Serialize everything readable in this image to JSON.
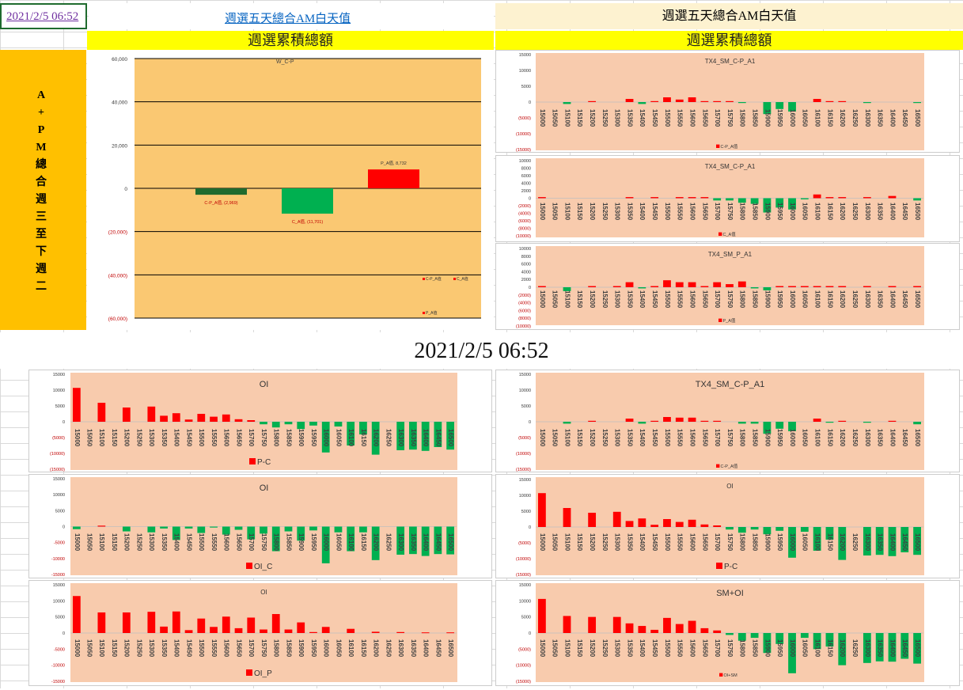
{
  "header": {
    "date_cell": "2021/2/5 06:52",
    "link_title": "週選五天總合AM白天值",
    "right_title": "週選五天總合AM白天值",
    "left_band": "週選累積總額",
    "right_band": "週選累積總額",
    "side_label": "A+PM總合週三至下週二",
    "center_time": "2021/2/5 06:52"
  },
  "colors": {
    "red": "#ff0000",
    "green": "#00b050",
    "dark_green": "#1f6b2e",
    "salmon_plot": "#f8cbad",
    "orange_plot": "#fac872",
    "yellow": "#ffff00",
    "gold": "#ffc000",
    "axis_red": "#c00000"
  },
  "chart_data": [
    {
      "id": "main",
      "type": "bar",
      "title": "W_C-P",
      "categories": [
        "C-P_A值",
        "C_A值",
        "P_A值"
      ],
      "values": [
        -2969,
        -11701,
        8732
      ],
      "data_labels": [
        "C-P_A值, (2,969)",
        "C_A值, (11,701)",
        "P_A值, 8,732"
      ],
      "legend": [
        "C-P_A值",
        "C_A值",
        "P_A值"
      ],
      "ylim": [
        -60000,
        60000
      ],
      "y_ticks": [
        "60,000",
        "40,000",
        "20,000",
        "0",
        "(20,000)",
        "(40,000)",
        "(60,000)"
      ]
    },
    {
      "id": "r1",
      "type": "bar",
      "title": "TX4_SM_C-P_A1",
      "categories": [
        "15000",
        "15050",
        "15100",
        "15150",
        "15200",
        "15250",
        "15300",
        "15350",
        "15400",
        "15450",
        "15500",
        "15550",
        "15600",
        "15650",
        "15700",
        "15750",
        "15800",
        "15850",
        "15900",
        "15950",
        "16000",
        "16050",
        "16100",
        "16150",
        "16200",
        "16250",
        "16300",
        "16350",
        "16400",
        "16450",
        "16500"
      ],
      "values": [
        0,
        0,
        -600,
        0,
        300,
        0,
        0,
        1000,
        -600,
        300,
        1500,
        800,
        1500,
        300,
        300,
        300,
        -300,
        0,
        -3800,
        -2200,
        -3000,
        0,
        1000,
        300,
        300,
        0,
        -300,
        0,
        0,
        0,
        -300
      ],
      "ylim": [
        -15000,
        15000
      ],
      "y_ticks": [
        "15000",
        "10000",
        "5000",
        "0",
        "(5000)",
        "(10000)",
        "(15000)"
      ],
      "legend": [
        "C-P_A值"
      ]
    },
    {
      "id": "r2",
      "type": "bar",
      "title": "TX4_SM_C-P_A1",
      "categories": [
        "15000",
        "15050",
        "15100",
        "15150",
        "15200",
        "15250",
        "15300",
        "15350",
        "15400",
        "15450",
        "15500",
        "15550",
        "15600",
        "15650",
        "15700",
        "15750",
        "15800",
        "15850",
        "15900",
        "15950",
        "16000",
        "16050",
        "16100",
        "16150",
        "16200",
        "16250",
        "16300",
        "16350",
        "16400",
        "16450",
        "16500"
      ],
      "values": [
        300,
        0,
        0,
        0,
        0,
        0,
        0,
        300,
        0,
        300,
        0,
        300,
        300,
        300,
        -600,
        -600,
        -1200,
        -1500,
        -3800,
        -2500,
        -3000,
        -300,
        1000,
        300,
        300,
        0,
        300,
        0,
        600,
        0,
        -600
      ],
      "ylim": [
        -10000,
        10000
      ],
      "y_ticks": [
        "10000",
        "8000",
        "6000",
        "4000",
        "2000",
        "0",
        "(2000)",
        "(4000)",
        "(6000)",
        "(8000)",
        "(10000)"
      ],
      "legend": [
        "C_A值"
      ]
    },
    {
      "id": "r3",
      "type": "bar",
      "title": "TX4_SM_P_A1",
      "categories": [
        "15000",
        "15050",
        "15100",
        "15150",
        "15200",
        "15250",
        "15300",
        "15350",
        "15400",
        "15450",
        "15500",
        "15550",
        "15600",
        "15650",
        "15700",
        "15750",
        "15800",
        "15850",
        "15900",
        "15950",
        "16000",
        "16050",
        "16100",
        "16150",
        "16200",
        "16250",
        "16300",
        "16350",
        "16400",
        "16450",
        "16500"
      ],
      "values": [
        300,
        0,
        -1000,
        0,
        300,
        0,
        300,
        1300,
        -300,
        300,
        1800,
        1300,
        1300,
        300,
        1300,
        800,
        1500,
        -300,
        -800,
        300,
        300,
        300,
        300,
        300,
        300,
        0,
        300,
        0,
        300,
        0,
        300
      ],
      "ylim": [
        -10000,
        10000
      ],
      "y_ticks": [
        "10000",
        "8000",
        "6000",
        "4000",
        "2000",
        "0",
        "(2000)",
        "(4000)",
        "(6000)",
        "(8000)",
        "(10000)"
      ],
      "legend": [
        "P_A值"
      ]
    },
    {
      "id": "b1",
      "type": "bar",
      "title": "OI",
      "categories": [
        "15000",
        "15050",
        "15100",
        "15150",
        "15200",
        "15250",
        "15300",
        "15350",
        "15400",
        "15450",
        "15500",
        "15550",
        "15600",
        "15650",
        "15700",
        "15750",
        "15800",
        "15850",
        "15900",
        "15950",
        "16000",
        "16050",
        "16100",
        "16150",
        "16200",
        "16250",
        "16300",
        "16350",
        "16400",
        "16450",
        "16500"
      ],
      "values": [
        10700,
        0,
        6000,
        0,
        4500,
        0,
        4800,
        1900,
        2700,
        700,
        2500,
        1600,
        2300,
        800,
        500,
        -800,
        -1800,
        -800,
        -2300,
        -1200,
        -9700,
        -1500,
        -7500,
        -4000,
        -10400,
        0,
        -9000,
        -8800,
        -9200,
        -8000,
        -8800
      ],
      "ylim": [
        -15000,
        15000
      ],
      "y_ticks": [
        "15000",
        "10000",
        "5000",
        "0",
        "(5000)",
        "(10000)",
        "(15000)"
      ],
      "legend": [
        "P-C"
      ]
    },
    {
      "id": "b2",
      "type": "bar",
      "title": "TX4_SM_C-P_A1",
      "categories": [
        "15000",
        "15050",
        "15100",
        "15150",
        "15200",
        "15250",
        "15300",
        "15350",
        "15400",
        "15450",
        "15500",
        "15550",
        "15600",
        "15650",
        "15700",
        "15750",
        "15800",
        "15850",
        "15900",
        "15950",
        "16000",
        "16050",
        "16100",
        "16150",
        "16200",
        "16250",
        "16300",
        "16350",
        "16400",
        "16450",
        "16500"
      ],
      "values": [
        0,
        0,
        -600,
        0,
        300,
        0,
        0,
        1000,
        -600,
        300,
        1500,
        1300,
        1300,
        300,
        300,
        0,
        -600,
        -600,
        -3800,
        -2200,
        -3000,
        0,
        1000,
        -300,
        300,
        0,
        -300,
        0,
        300,
        0,
        -800
      ],
      "ylim": [
        -15000,
        15000
      ],
      "y_ticks": [
        "15000",
        "10000",
        "5000",
        "0",
        "(5000)",
        "(10000)",
        "(15000)"
      ],
      "legend": [
        "C-P_A值"
      ]
    },
    {
      "id": "b3",
      "type": "bar",
      "title": "OI",
      "categories": [
        "15000",
        "15050",
        "15100",
        "15150",
        "15200",
        "15250",
        "15300",
        "15350",
        "15400",
        "15450",
        "15500",
        "15550",
        "15600",
        "15650",
        "15700",
        "15750",
        "15800",
        "15850",
        "15900",
        "15950",
        "16000",
        "16050",
        "16100",
        "16150",
        "16200",
        "16250",
        "16300",
        "16350",
        "16400",
        "16450",
        "16500"
      ],
      "values": [
        -800,
        0,
        300,
        0,
        -1500,
        0,
        -1800,
        -600,
        -4200,
        -600,
        -2000,
        -300,
        -2500,
        -1000,
        -4000,
        -2200,
        -7700,
        -1500,
        -4400,
        -1200,
        -11500,
        -1800,
        -7700,
        -1800,
        -10500,
        0,
        -8800,
        -8600,
        -9200,
        -8600,
        -8700
      ],
      "ylim": [
        -15000,
        15000
      ],
      "y_ticks": [
        "15000",
        "10000",
        "5000",
        "0",
        "-5000",
        "-10000",
        "-15000"
      ],
      "legend": [
        "OI_C"
      ]
    },
    {
      "id": "b4",
      "type": "bar",
      "title": "OI",
      "categories": [
        "15000",
        "15050",
        "15100",
        "15150",
        "15200",
        "15250",
        "15300",
        "15350",
        "15400",
        "15450",
        "15500",
        "15550",
        "15600",
        "15650",
        "15700",
        "15750",
        "15800",
        "15850",
        "15900",
        "15950",
        "16000",
        "16050",
        "16100",
        "16150",
        "16200",
        "16250",
        "16300",
        "16350",
        "16400",
        "16450",
        "16500"
      ],
      "values": [
        10700,
        0,
        6000,
        0,
        4500,
        0,
        4800,
        1900,
        2700,
        700,
        2500,
        1600,
        2300,
        800,
        500,
        -800,
        -1800,
        -800,
        -2300,
        -1200,
        -9700,
        -1500,
        -7500,
        -4000,
        -10400,
        0,
        -9000,
        -8800,
        -9200,
        -8000,
        -8800
      ],
      "ylim": [
        -15000,
        15000
      ],
      "y_ticks": [
        "15000",
        "10000",
        "5000",
        "0",
        "(5000)",
        "(10000)",
        "(15000)"
      ],
      "legend": [
        "P-C"
      ]
    },
    {
      "id": "b5",
      "type": "bar",
      "title": "OI",
      "categories": [
        "15000",
        "15050",
        "15100",
        "15150",
        "15200",
        "15250",
        "15300",
        "15350",
        "15400",
        "15450",
        "15500",
        "15550",
        "15600",
        "15650",
        "15700",
        "15750",
        "15800",
        "15850",
        "15900",
        "15950",
        "16000",
        "16050",
        "16100",
        "16150",
        "16200",
        "16250",
        "16300",
        "16350",
        "16400",
        "16450",
        "16500"
      ],
      "values": [
        11500,
        0,
        6400,
        0,
        6400,
        0,
        6600,
        2000,
        6700,
        900,
        4500,
        1900,
        5100,
        1500,
        4800,
        1100,
        5900,
        1100,
        3300,
        300,
        1900,
        0,
        1300,
        0,
        400,
        0,
        300,
        0,
        200,
        0,
        200
      ],
      "ylim": [
        -15000,
        15000
      ],
      "y_ticks": [
        "15000",
        "10000",
        "5000",
        "0",
        "-5000",
        "-10000",
        "-15000"
      ],
      "legend": [
        "OI_P"
      ]
    },
    {
      "id": "b6",
      "type": "bar",
      "title": "SM+OI",
      "categories": [
        "15000",
        "15050",
        "15100",
        "15150",
        "15200",
        "15250",
        "15300",
        "15350",
        "15400",
        "15450",
        "15500",
        "15550",
        "15600",
        "15650",
        "15700",
        "15750",
        "15800",
        "15850",
        "15900",
        "15950",
        "16000",
        "16050",
        "16100",
        "16150",
        "16200",
        "16250",
        "16300",
        "16350",
        "16400",
        "16450",
        "16500"
      ],
      "values": [
        10600,
        0,
        5300,
        0,
        5000,
        0,
        5000,
        3000,
        2200,
        1000,
        4700,
        2800,
        3800,
        1500,
        800,
        -600,
        -2400,
        -1500,
        -6200,
        -3400,
        -12500,
        -1500,
        -5000,
        -4200,
        -10000,
        0,
        -9300,
        -8800,
        -8900,
        -8000,
        -9500
      ],
      "ylim": [
        -15000,
        15000
      ],
      "y_ticks": [
        "15000",
        "10000",
        "5000",
        "0",
        "(5000)",
        "(10000)",
        "(15000)"
      ],
      "legend": [
        "OI+SM"
      ]
    }
  ]
}
